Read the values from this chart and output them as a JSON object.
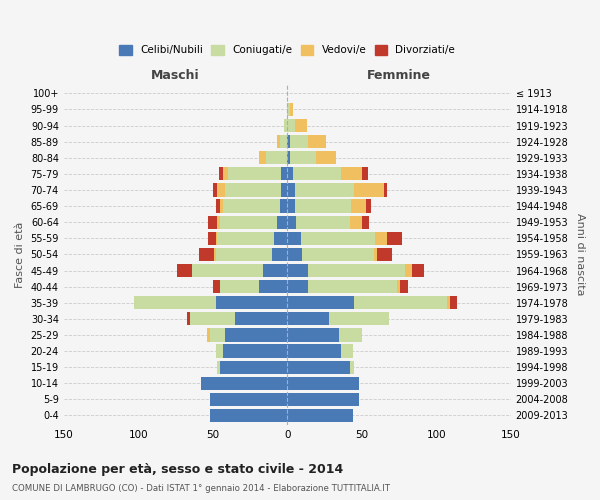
{
  "age_groups": [
    "0-4",
    "5-9",
    "10-14",
    "15-19",
    "20-24",
    "25-29",
    "30-34",
    "35-39",
    "40-44",
    "45-49",
    "50-54",
    "55-59",
    "60-64",
    "65-69",
    "70-74",
    "75-79",
    "80-84",
    "85-89",
    "90-94",
    "95-99",
    "100+"
  ],
  "birth_years": [
    "2009-2013",
    "2004-2008",
    "1999-2003",
    "1994-1998",
    "1989-1993",
    "1984-1988",
    "1979-1983",
    "1974-1978",
    "1969-1973",
    "1964-1968",
    "1959-1963",
    "1954-1958",
    "1949-1953",
    "1944-1948",
    "1939-1943",
    "1934-1938",
    "1929-1933",
    "1924-1928",
    "1919-1923",
    "1914-1918",
    "≤ 1913"
  ],
  "maschi": {
    "celibi": [
      52,
      52,
      58,
      45,
      43,
      42,
      35,
      48,
      19,
      16,
      10,
      9,
      7,
      5,
      4,
      4,
      0,
      0,
      0,
      0,
      0
    ],
    "coniugati": [
      0,
      0,
      0,
      2,
      5,
      10,
      30,
      55,
      26,
      48,
      38,
      38,
      38,
      38,
      38,
      36,
      14,
      5,
      2,
      0,
      0
    ],
    "vedovi": [
      0,
      0,
      0,
      0,
      0,
      2,
      0,
      0,
      0,
      0,
      1,
      1,
      2,
      2,
      5,
      3,
      5,
      2,
      0,
      0,
      0
    ],
    "divorziati": [
      0,
      0,
      0,
      0,
      0,
      0,
      2,
      0,
      5,
      10,
      10,
      5,
      6,
      3,
      3,
      3,
      0,
      0,
      0,
      0,
      0
    ]
  },
  "femmine": {
    "nubili": [
      44,
      48,
      48,
      42,
      36,
      35,
      28,
      45,
      14,
      14,
      10,
      9,
      6,
      5,
      5,
      4,
      2,
      2,
      0,
      0,
      0
    ],
    "coniugate": [
      0,
      0,
      0,
      3,
      8,
      15,
      40,
      62,
      60,
      65,
      48,
      50,
      36,
      38,
      40,
      32,
      17,
      12,
      5,
      2,
      0
    ],
    "vedove": [
      0,
      0,
      0,
      0,
      0,
      0,
      0,
      2,
      2,
      5,
      2,
      8,
      8,
      10,
      20,
      14,
      14,
      12,
      8,
      2,
      0
    ],
    "divorziate": [
      0,
      0,
      0,
      0,
      0,
      0,
      0,
      5,
      5,
      8,
      10,
      10,
      5,
      3,
      2,
      4,
      0,
      0,
      0,
      0,
      0
    ]
  },
  "colors": {
    "celibi": "#4a7ab5",
    "coniugati": "#c8dba0",
    "vedovi": "#f0c060",
    "divorziati": "#c0392b"
  },
  "xlim": 150,
  "title": "Popolazione per età, sesso e stato civile - 2014",
  "subtitle": "COMUNE DI LAMBRUGO (CO) - Dati ISTAT 1° gennaio 2014 - Elaborazione TUTTITALIA.IT",
  "ylabel_left": "Fasce di età",
  "ylabel_right": "Anni di nascita",
  "xlabel_maschi": "Maschi",
  "xlabel_femmine": "Femmine",
  "legend_labels": [
    "Celibi/Nubili",
    "Coniugati/e",
    "Vedovi/e",
    "Divorziati/e"
  ],
  "background_color": "#f5f5f5",
  "grid_color": "#cccccc"
}
